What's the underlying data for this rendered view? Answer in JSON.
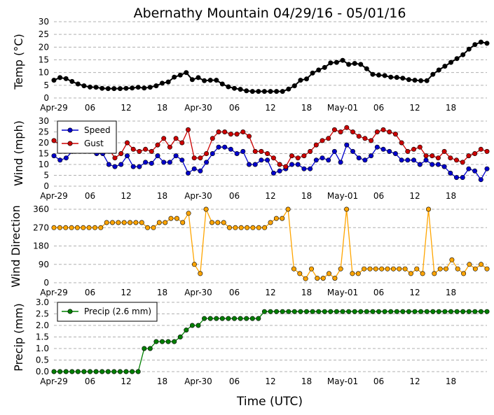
{
  "chart_data": {
    "type": "line",
    "title": "Abernathy Mountain 04/29/16 - 05/01/16",
    "xlabel": "Time (UTC)",
    "x_unit": "hours",
    "xlim": [
      0,
      72
    ],
    "x_ticks": [
      {
        "x": 0,
        "label": "Apr-29"
      },
      {
        "x": 6,
        "label": "06"
      },
      {
        "x": 12,
        "label": "12"
      },
      {
        "x": 18,
        "label": "18"
      },
      {
        "x": 24,
        "label": "Apr-30"
      },
      {
        "x": 30,
        "label": "06"
      },
      {
        "x": 36,
        "label": "12"
      },
      {
        "x": 42,
        "label": "18"
      },
      {
        "x": 48,
        "label": "May-01"
      },
      {
        "x": 54,
        "label": "06"
      },
      {
        "x": 60,
        "label": "12"
      },
      {
        "x": 66,
        "label": "18"
      }
    ],
    "grid": "horizontal dashed",
    "panels": [
      {
        "id": "temp",
        "ylabel": "Temp (°C)",
        "ylim": [
          0,
          30
        ],
        "yticks": [
          0,
          5,
          10,
          15,
          20,
          25,
          30
        ],
        "legend": null,
        "series": [
          {
            "color": "#000000",
            "values": [
              7,
              8,
              7.6,
              6.5,
              5.5,
              4.8,
              4.3,
              4.2,
              3.8,
              3.7,
              3.7,
              3.7,
              3.8,
              3.9,
              4.2,
              3.9,
              4.2,
              4.8,
              5.8,
              6.3,
              8.2,
              9,
              10,
              7.2,
              8,
              6.8,
              7,
              7,
              5.5,
              4.4,
              3.8,
              3.4,
              2.8,
              2.6,
              2.6,
              2.6,
              2.6,
              2.6,
              2.6,
              3.5,
              4.8,
              7,
              7.5,
              9.8,
              11,
              12,
              13.8,
              14,
              14.8,
              13.2,
              13.6,
              13.2,
              11.5,
              9.3,
              9,
              8.8,
              8.2,
              8.1,
              7.8,
              7.2,
              7,
              6.8,
              6.8,
              9.3,
              11,
              12.5,
              14,
              15.5,
              17,
              19.2,
              21,
              22,
              21.5
            ]
          }
        ]
      },
      {
        "id": "wind",
        "ylabel": "Wind (mph)",
        "ylim": [
          0,
          30
        ],
        "yticks": [
          0,
          5,
          10,
          15,
          20,
          25,
          30
        ],
        "legend": "upper left",
        "series": [
          {
            "name": "Speed",
            "color": "#0000cc",
            "values": [
              14,
              12,
              13,
              16,
              18,
              17,
              18,
              15,
              15,
              10,
              9,
              10,
              14,
              9,
              9,
              11,
              10.5,
              14,
              11,
              11,
              14,
              12,
              6,
              8,
              7,
              11,
              15,
              18,
              18,
              17,
              15,
              16,
              10,
              10,
              12,
              12,
              6,
              7,
              8,
              10,
              10,
              8,
              8,
              12,
              13,
              12,
              16,
              11,
              19,
              16,
              13,
              12,
              14,
              18,
              17,
              16,
              15,
              12,
              12,
              12,
              10,
              12,
              10,
              10,
              9,
              6,
              4,
              4,
              8,
              7,
              3,
              8
            ]
          },
          {
            "name": "Gust",
            "color": "#cc0000",
            "values": [
              21,
              19,
              21,
              19,
              20,
              21,
              20,
              20,
              21,
              17,
              13,
              15,
              20,
              17,
              16,
              17,
              16,
              19,
              22,
              18,
              22,
              20,
              26,
              13,
              13,
              15,
              22,
              25,
              25,
              24,
              24,
              25,
              23,
              16,
              16,
              15,
              13,
              10,
              9,
              14,
              13,
              14,
              16,
              19,
              21,
              22,
              26,
              25,
              27,
              25,
              23,
              22,
              21,
              25,
              26,
              25,
              24,
              20,
              16,
              17,
              18,
              14,
              14,
              13,
              16,
              13,
              12,
              11,
              14,
              15,
              17,
              16
            ]
          }
        ]
      },
      {
        "id": "direction",
        "ylabel": "Wind Direction",
        "ylim": [
          0,
          360
        ],
        "yticks": [
          0,
          90,
          180,
          270,
          360
        ],
        "legend": null,
        "series": [
          {
            "color": "#ffa500",
            "values": [
              270,
              270,
              270,
              270,
              270,
              270,
              270,
              270,
              270,
              295,
              295,
              295,
              295,
              295,
              295,
              295,
              270,
              270,
              295,
              295,
              315,
              315,
              295,
              340,
              90,
              45,
              360,
              295,
              295,
              295,
              270,
              270,
              270,
              270,
              270,
              270,
              270,
              295,
              315,
              315,
              360,
              68,
              45,
              20,
              68,
              22,
              22,
              45,
              22,
              68,
              360,
              45,
              45,
              68,
              68,
              68,
              68,
              68,
              68,
              68,
              68,
              45,
              68,
              45,
              360,
              45,
              68,
              68,
              112,
              68,
              45,
              90,
              68,
              90,
              68
            ]
          }
        ]
      },
      {
        "id": "precip",
        "ylabel": "Precip (mm)",
        "ylim": [
          0,
          3.0
        ],
        "yticks": [
          0.0,
          0.5,
          1.0,
          1.5,
          2.0,
          2.5,
          3.0
        ],
        "legend": "upper left",
        "series": [
          {
            "name": "Precip (2.6 mm)",
            "color": "#008000",
            "values": [
              0,
              0,
              0,
              0,
              0,
              0,
              0,
              0,
              0,
              0,
              0,
              0,
              0,
              0,
              0,
              1.0,
              1.0,
              1.3,
              1.3,
              1.3,
              1.3,
              1.5,
              1.8,
              2.0,
              2.0,
              2.3,
              2.3,
              2.3,
              2.3,
              2.3,
              2.3,
              2.3,
              2.3,
              2.3,
              2.3,
              2.6,
              2.6,
              2.6,
              2.6,
              2.6,
              2.6,
              2.6,
              2.6,
              2.6,
              2.6,
              2.6,
              2.6,
              2.6,
              2.6,
              2.6,
              2.6,
              2.6,
              2.6,
              2.6,
              2.6,
              2.6,
              2.6,
              2.6,
              2.6,
              2.6,
              2.6,
              2.6,
              2.6,
              2.6,
              2.6,
              2.6,
              2.6,
              2.6,
              2.6,
              2.6,
              2.6,
              2.6,
              2.6
            ]
          }
        ]
      }
    ]
  }
}
